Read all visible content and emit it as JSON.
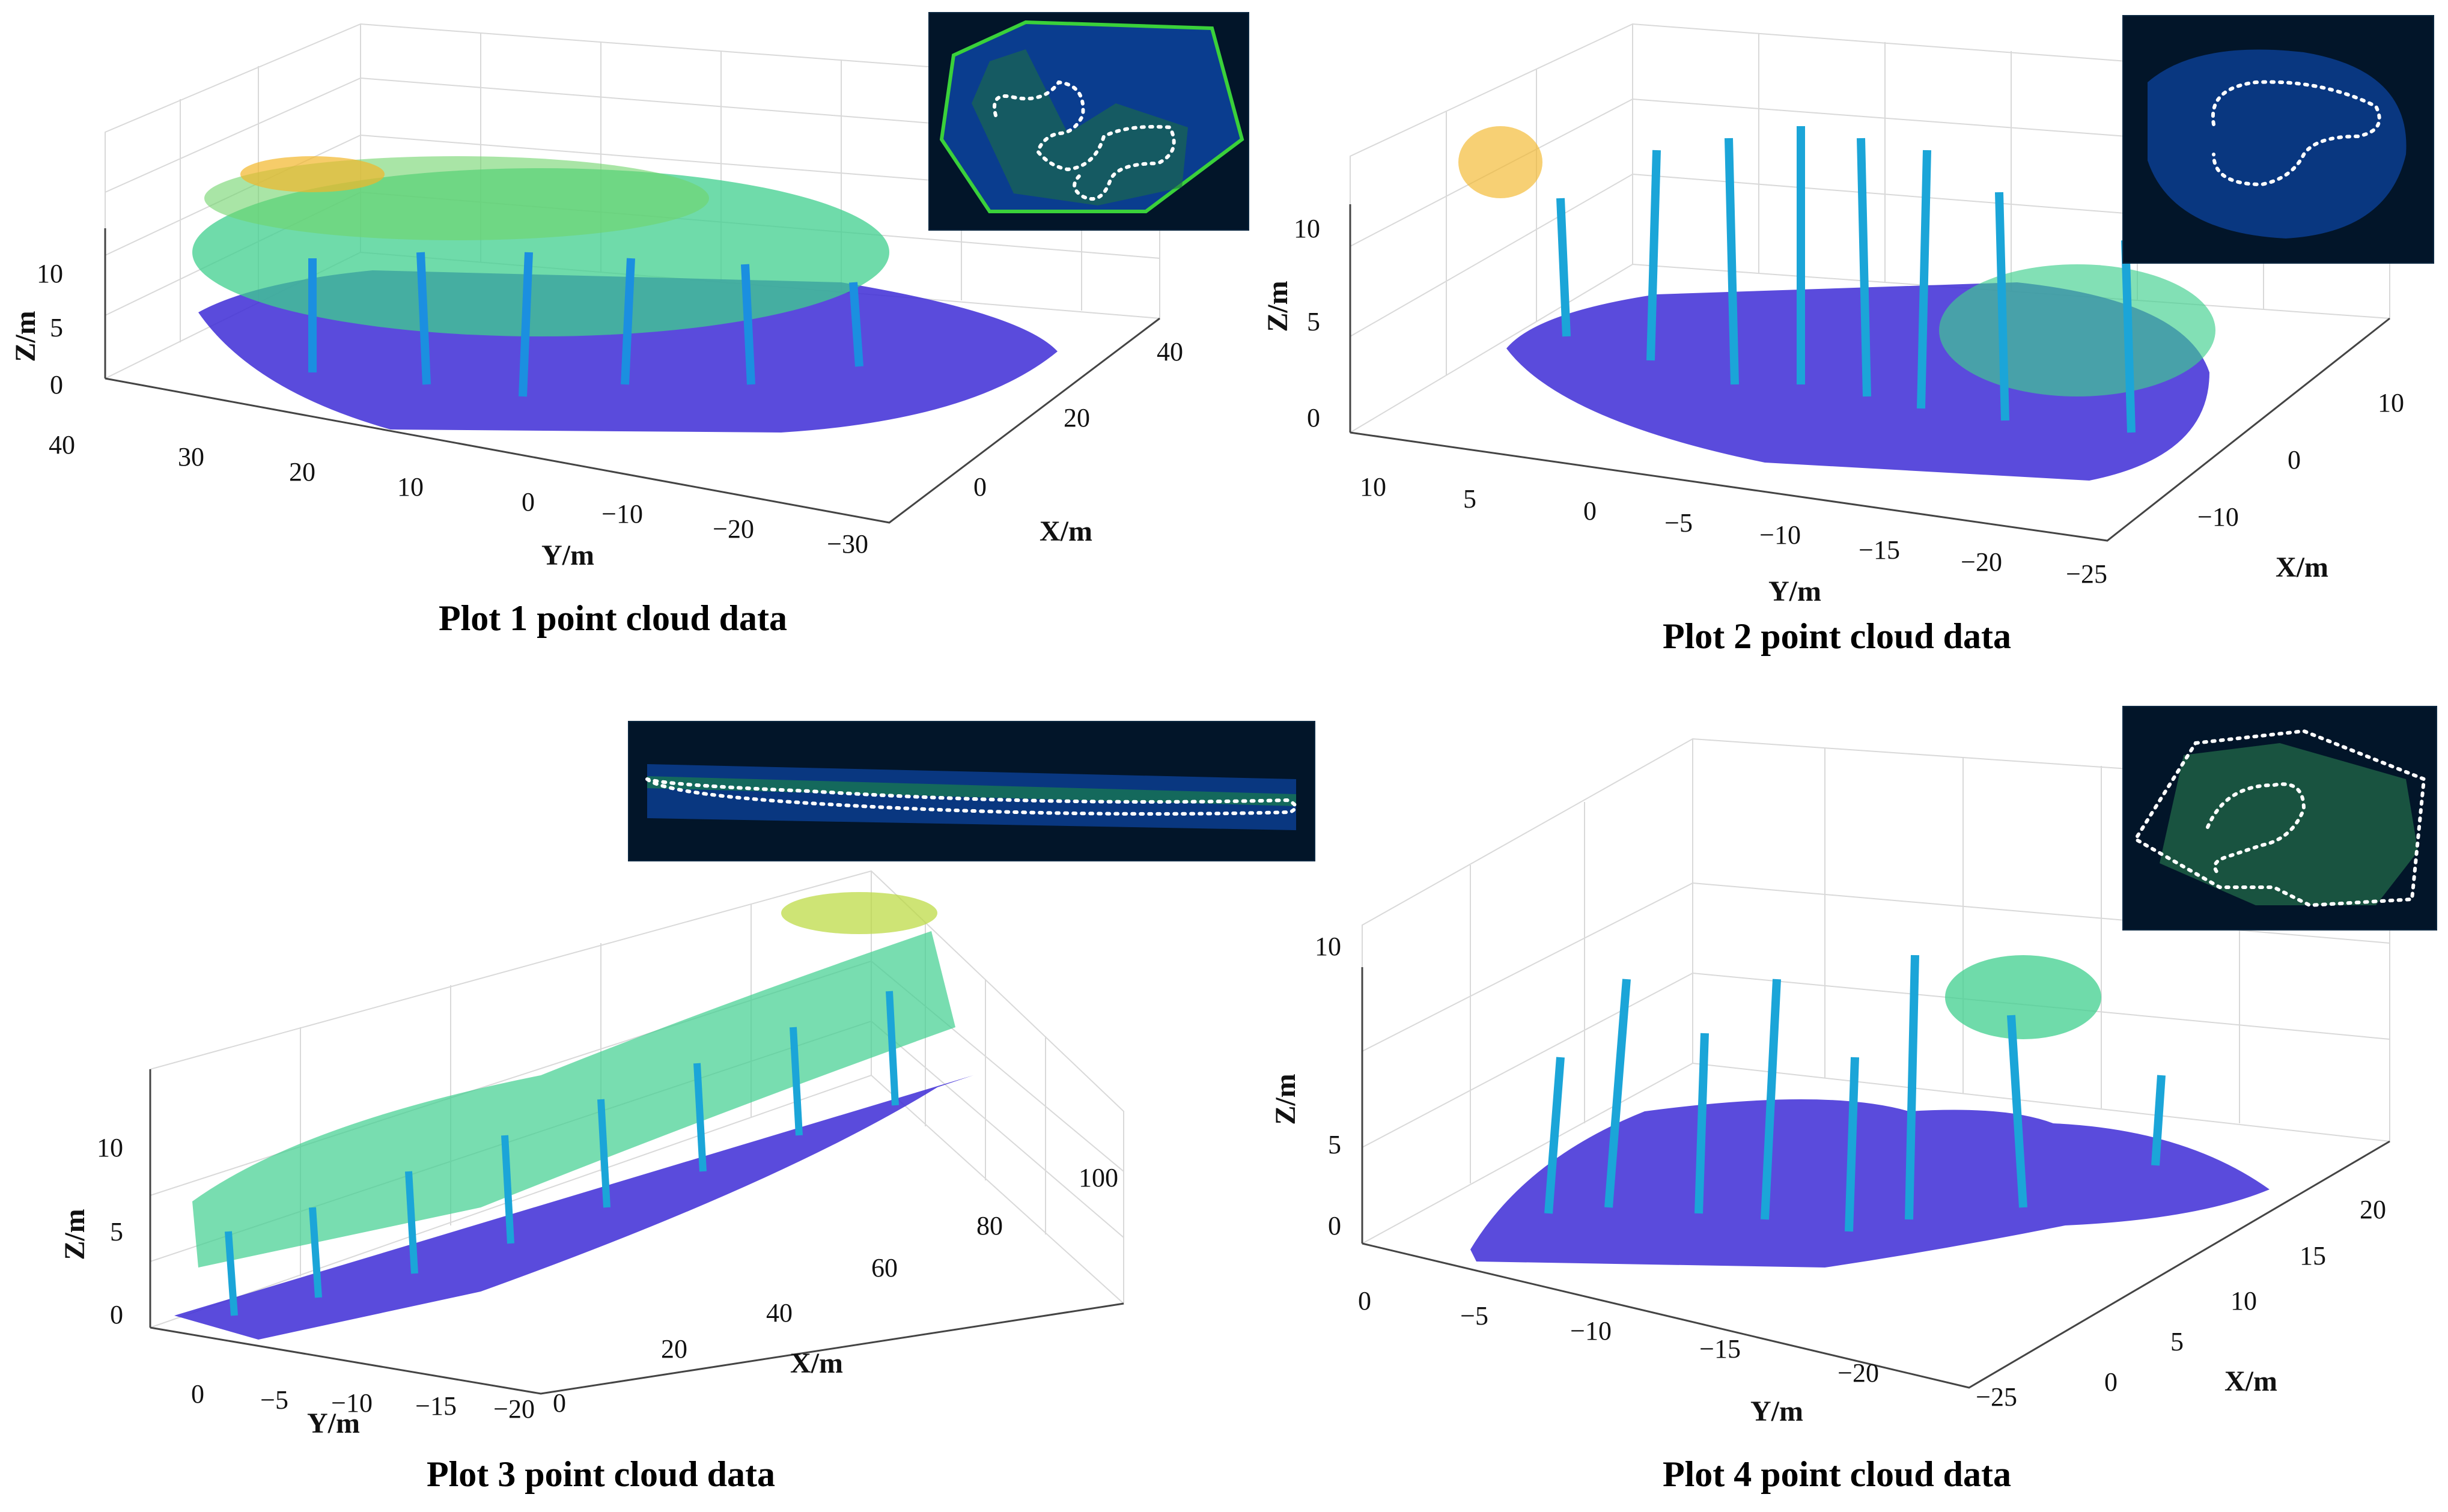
{
  "chart_data": [
    {
      "type": "scatter",
      "title": "Plot 1 point cloud data",
      "xlabel": "X/m",
      "ylabel": "Y/m",
      "zlabel": "Z/m",
      "x_ticks": [
        "0",
        "20",
        "40"
      ],
      "y_ticks": [
        "40",
        "30",
        "20",
        "10",
        "0",
        "−10",
        "−20",
        "−30"
      ],
      "z_ticks": [
        "0",
        "5",
        "10"
      ],
      "xlim": [
        -8,
        48
      ],
      "ylim": [
        -32,
        42
      ],
      "zlim": [
        0,
        14
      ],
      "colormap": "parula (height-coded)",
      "inset": "top-view trajectory"
    },
    {
      "type": "scatter",
      "title": "Plot 2 point cloud data",
      "xlabel": "X/m",
      "ylabel": "Y/m",
      "zlabel": "Z/m",
      "x_ticks": [
        "−10",
        "0",
        "10"
      ],
      "y_ticks": [
        "10",
        "5",
        "0",
        "−5",
        "−10",
        "−15",
        "−20",
        "−25"
      ],
      "z_ticks": [
        "0",
        "5",
        "10"
      ],
      "xlim": [
        -14,
        14
      ],
      "ylim": [
        -27,
        13
      ],
      "zlim": [
        0,
        11
      ],
      "colormap": "parula (height-coded)",
      "inset": "top-view trajectory"
    },
    {
      "type": "scatter",
      "title": "Plot 3 point cloud data",
      "xlabel": "X/m",
      "ylabel": "Y/m",
      "zlabel": "Z/m",
      "x_ticks": [
        "0",
        "20",
        "40",
        "60",
        "80",
        "100"
      ],
      "y_ticks": [
        "0",
        "−5",
        "−10",
        "−15",
        "−20"
      ],
      "z_ticks": [
        "0",
        "5",
        "10"
      ],
      "xlim": [
        0,
        108
      ],
      "ylim": [
        -21,
        3
      ],
      "zlim": [
        0,
        14
      ],
      "colormap": "parula (height-coded)",
      "inset": "top-view trajectory"
    },
    {
      "type": "scatter",
      "title": "Plot 4 point cloud data",
      "xlabel": "X/m",
      "ylabel": "Y/m",
      "zlabel": "Z/m",
      "x_ticks": [
        "0",
        "5",
        "10",
        "15",
        "20"
      ],
      "y_ticks": [
        "0",
        "−5",
        "−10",
        "−15",
        "−20",
        "−25"
      ],
      "z_ticks": [
        "0",
        "5",
        "10"
      ],
      "xlim": [
        0,
        22
      ],
      "ylim": [
        -27,
        1
      ],
      "zlim": [
        0,
        11
      ],
      "colormap": "parula (height-coded)",
      "inset": "top-view trajectory"
    }
  ],
  "colors": {
    "ground": "#3d2bd6",
    "stem_low": "#2a6ff0",
    "stem_mid": "#1bb3c9",
    "crown": "#3fcf8e",
    "crown_high": "#b9d83a",
    "top": "#f2b72a",
    "inset_bg": "#021529",
    "trajectory": "#ffffff"
  }
}
